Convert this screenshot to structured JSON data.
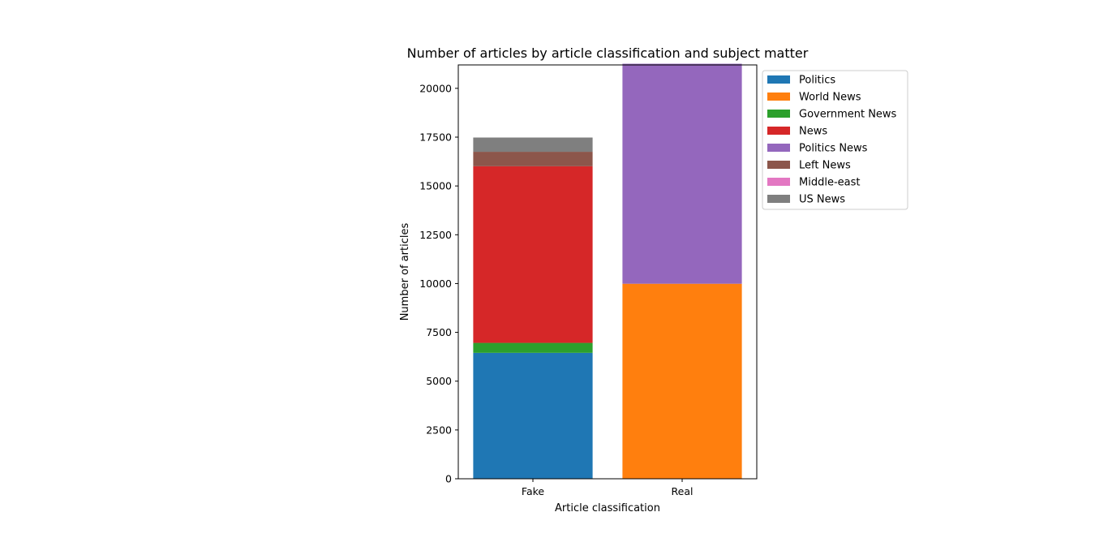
{
  "chart_data": {
    "type": "bar",
    "stacked": true,
    "title": "Number of articles by article classification and subject matter",
    "xlabel": "Article classification",
    "ylabel": "Number of articles",
    "categories": [
      "Fake",
      "Real"
    ],
    "ylim": [
      0,
      21200
    ],
    "yticks": [
      0,
      2500,
      5000,
      7500,
      10000,
      12500,
      15000,
      17500,
      20000
    ],
    "grid": false,
    "legend_position": "outside-top-right",
    "series": [
      {
        "name": "Politics",
        "color": "#1f77b4",
        "values": [
          6450,
          0
        ]
      },
      {
        "name": "World News",
        "color": "#ff7f0e",
        "values": [
          0,
          9990
        ]
      },
      {
        "name": "Government News",
        "color": "#2ca02c",
        "values": [
          510,
          0
        ]
      },
      {
        "name": "News",
        "color": "#d62728",
        "values": [
          9050,
          0
        ]
      },
      {
        "name": "Politics News",
        "color": "#9467bd",
        "values": [
          0,
          11270
        ]
      },
      {
        "name": "Left News",
        "color": "#8c564b",
        "values": [
          740,
          0
        ]
      },
      {
        "name": "Middle-east",
        "color": "#e377c2",
        "values": [
          0,
          0
        ]
      },
      {
        "name": "US News",
        "color": "#7f7f7f",
        "values": [
          730,
          0
        ]
      }
    ]
  }
}
